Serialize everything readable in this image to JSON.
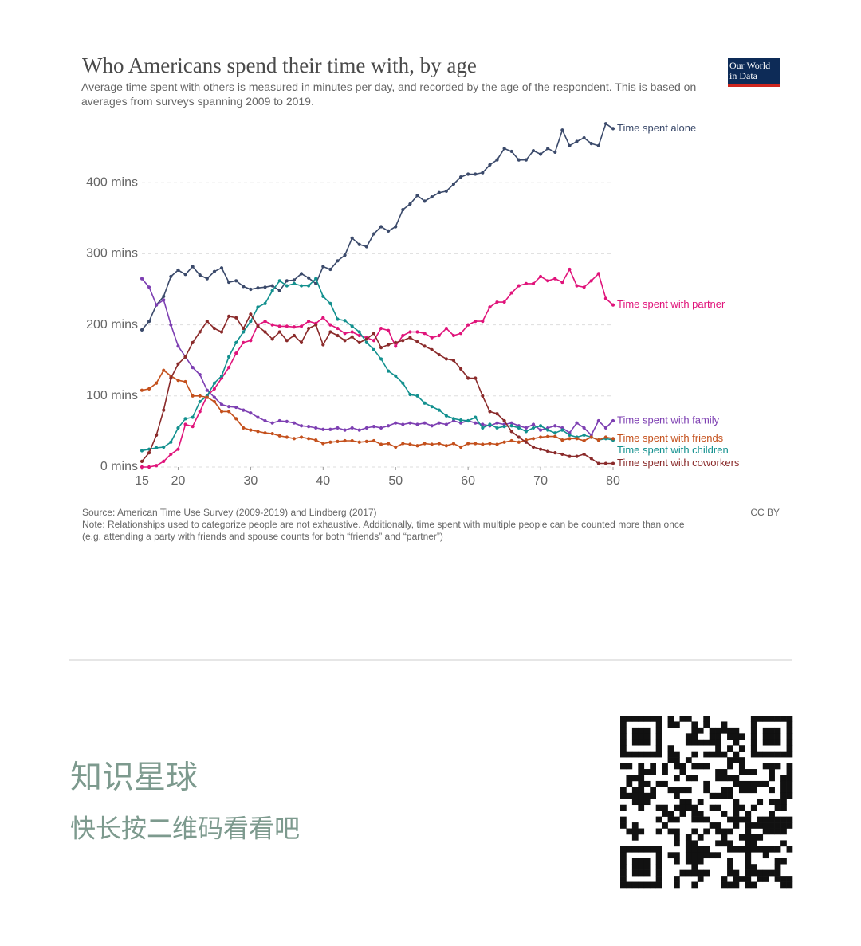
{
  "chart_data": {
    "type": "line",
    "title": "Who Americans spend their time with, by age",
    "subtitle": "Average time spent with others is measured in minutes per day, and recorded by the age of the respondent. This is based on averages from surveys spanning 2009 to 2019.",
    "logo": "Our World in Data",
    "x": [
      15,
      16,
      17,
      18,
      19,
      20,
      21,
      22,
      23,
      24,
      25,
      26,
      27,
      28,
      29,
      30,
      31,
      32,
      33,
      34,
      35,
      36,
      37,
      38,
      39,
      40,
      41,
      42,
      43,
      44,
      45,
      46,
      47,
      48,
      49,
      50,
      51,
      52,
      53,
      54,
      55,
      56,
      57,
      58,
      59,
      60,
      61,
      62,
      63,
      64,
      65,
      66,
      67,
      68,
      69,
      70,
      71,
      72,
      73,
      74,
      75,
      76,
      77,
      78,
      79,
      80
    ],
    "xlim": [
      15,
      80
    ],
    "xticks": [
      15,
      20,
      30,
      40,
      50,
      60,
      70,
      80
    ],
    "ylim": [
      0,
      500
    ],
    "yticks": [
      {
        "value": 0,
        "label": "0 mins"
      },
      {
        "value": 100,
        "label": "100 mins"
      },
      {
        "value": 200,
        "label": "200 mins"
      },
      {
        "value": 300,
        "label": "300 mins"
      },
      {
        "value": 400,
        "label": "400 mins"
      }
    ],
    "grid": true,
    "series": [
      {
        "name": "Time spent alone",
        "color": "#3b4a6b",
        "values": [
          193,
          205,
          228,
          240,
          268,
          277,
          271,
          282,
          270,
          265,
          275,
          280,
          260,
          262,
          254,
          250,
          252,
          253,
          255,
          248,
          262,
          263,
          272,
          266,
          258,
          282,
          278,
          290,
          298,
          322,
          313,
          310,
          328,
          338,
          332,
          338,
          362,
          370,
          382,
          374,
          380,
          386,
          388,
          398,
          408,
          412,
          412,
          414,
          425,
          432,
          448,
          444,
          432,
          432,
          445,
          440,
          448,
          443,
          474,
          452,
          458,
          463,
          455,
          452,
          483,
          476
        ]
      },
      {
        "name": "Time spent with partner",
        "color": "#e0137a",
        "values": [
          0,
          0,
          2,
          8,
          18,
          25,
          60,
          57,
          78,
          100,
          110,
          125,
          140,
          160,
          175,
          178,
          200,
          205,
          200,
          198,
          198,
          197,
          198,
          205,
          202,
          210,
          200,
          195,
          188,
          190,
          185,
          182,
          178,
          195,
          192,
          170,
          185,
          190,
          190,
          188,
          182,
          185,
          195,
          185,
          188,
          200,
          205,
          205,
          225,
          232,
          232,
          245,
          255,
          258,
          258,
          268,
          262,
          265,
          260,
          278,
          255,
          253,
          262,
          272,
          237,
          228
        ]
      },
      {
        "name": "Time spent with family",
        "color": "#7d3fb2",
        "values": [
          265,
          253,
          228,
          235,
          200,
          170,
          155,
          140,
          130,
          108,
          98,
          88,
          85,
          84,
          80,
          76,
          70,
          65,
          62,
          65,
          64,
          62,
          58,
          57,
          55,
          53,
          53,
          55,
          52,
          55,
          52,
          55,
          57,
          55,
          58,
          62,
          60,
          62,
          60,
          62,
          58,
          62,
          60,
          65,
          62,
          65,
          62,
          60,
          58,
          62,
          60,
          62,
          58,
          55,
          60,
          52,
          55,
          58,
          55,
          48,
          62,
          55,
          45,
          65,
          55,
          65
        ]
      },
      {
        "name": "Time spent with children",
        "color": "#12908e",
        "values": [
          23,
          25,
          27,
          28,
          35,
          55,
          68,
          70,
          92,
          100,
          118,
          128,
          155,
          175,
          190,
          205,
          225,
          230,
          248,
          262,
          255,
          258,
          255,
          255,
          265,
          240,
          230,
          208,
          206,
          198,
          190,
          175,
          165,
          152,
          135,
          128,
          118,
          102,
          100,
          90,
          85,
          80,
          72,
          68,
          66,
          65,
          70,
          55,
          60,
          55,
          57,
          58,
          55,
          50,
          55,
          58,
          52,
          48,
          52,
          45,
          42,
          45,
          42,
          38,
          40,
          38
        ]
      },
      {
        "name": "Time spent with friends",
        "color": "#c4501c",
        "values": [
          108,
          110,
          118,
          136,
          128,
          122,
          120,
          100,
          100,
          98,
          92,
          78,
          78,
          68,
          55,
          52,
          50,
          48,
          47,
          44,
          42,
          40,
          42,
          40,
          38,
          33,
          35,
          36,
          37,
          37,
          35,
          36,
          37,
          32,
          33,
          28,
          33,
          32,
          30,
          33,
          32,
          33,
          30,
          33,
          28,
          33,
          33,
          32,
          33,
          32,
          35,
          37,
          35,
          38,
          40,
          42,
          43,
          43,
          38,
          40,
          40,
          37,
          42,
          38,
          42,
          40
        ]
      },
      {
        "name": "Time spent with coworkers",
        "color": "#8a2a2a",
        "values": [
          8,
          20,
          45,
          80,
          125,
          145,
          155,
          175,
          190,
          205,
          195,
          190,
          212,
          210,
          195,
          215,
          198,
          190,
          180,
          190,
          178,
          185,
          175,
          195,
          200,
          172,
          190,
          185,
          178,
          183,
          175,
          180,
          188,
          168,
          172,
          175,
          178,
          182,
          176,
          170,
          165,
          158,
          152,
          150,
          138,
          125,
          125,
          100,
          78,
          75,
          65,
          50,
          42,
          35,
          28,
          25,
          22,
          20,
          18,
          15,
          15,
          18,
          12,
          5,
          5,
          5
        ]
      }
    ],
    "source": "Source: American Time Use Survey (2009-2019) and Lindberg (2017)",
    "license": "CC BY",
    "note": "Note: Relationships used to categorize people are not exhaustive. Additionally, time spent with multiple people can be counted more than once",
    "note_example": "(e.g. attending a party with friends and spouse counts for both “friends” and “partner”)"
  },
  "footer": {
    "title": "知识星球",
    "subtitle": "快长按二维码看看吧"
  }
}
